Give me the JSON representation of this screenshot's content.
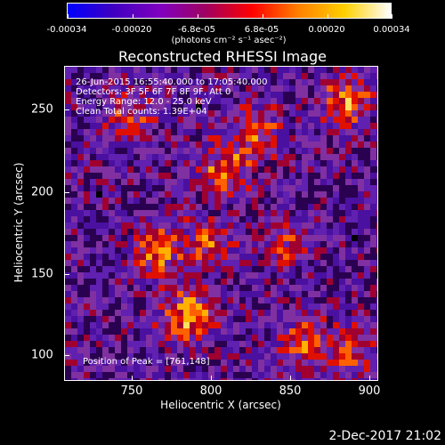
{
  "colorbar": {
    "labels": [
      "-0.00034",
      "-0.00020",
      "-6.8e-05",
      "6.8e-05",
      "0.00020",
      "0.00034"
    ],
    "units": "(photons cm⁻² s⁻¹ asec⁻²)",
    "colors": [
      "#0000ff",
      "#4000c0",
      "#8000c0",
      "#a00060",
      "#ff0000",
      "#ff8000",
      "#ffd000",
      "#ffffff"
    ]
  },
  "title": "Reconstructed RHESSI Image",
  "info": {
    "time_range": "26-Jun-2015 16:55:40.000 to 17:05:40.000",
    "detectors": "Detectors: 3F 5F 6F 7F 8F 9F, Att 0",
    "energy_range": "Energy Range: 12.0 - 25.0 keV",
    "method_counts": "Clean     Total counts: 1.39E+04"
  },
  "peak": "Position of Peak = [761,148]",
  "x_axis": {
    "label": "Heliocentric X (arcsec)",
    "ticks": [
      "750",
      "800",
      "850",
      "900"
    ]
  },
  "y_axis": {
    "label": "Heliocentric Y (arcsec)",
    "ticks": [
      "250",
      "200",
      "150",
      "100"
    ]
  },
  "datestamp": "2-Dec-2017 21:02"
}
